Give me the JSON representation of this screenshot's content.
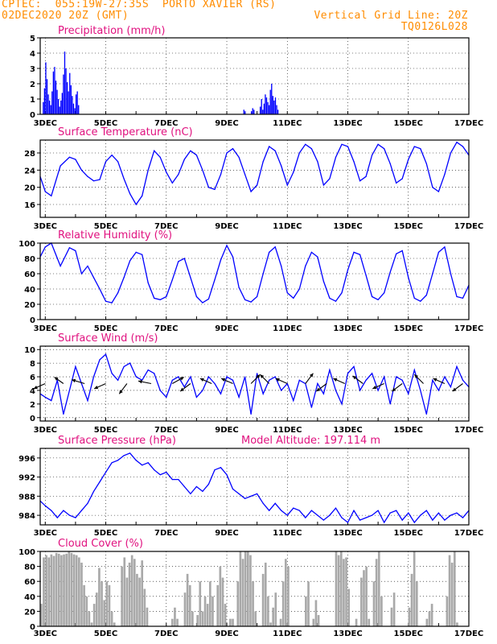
{
  "header": {
    "line1_left": "CPTEC:",
    "line1_coords": "055:19W-27:35S",
    "line1_place": "PORTO XAVIER (RS)",
    "line2_left": "02DEC2020 20Z (GMT)",
    "line1_right": "Vertical Grid Line: 20Z",
    "line2_right": "TQ0126L028"
  },
  "colors": {
    "header": "#ff8c00",
    "titles": "#e0117f",
    "series": "#0000ff",
    "cloud": "#a9a9a9",
    "arrows": "#000000"
  },
  "x_labels": [
    "3DEC",
    "5DEC",
    "7DEC",
    "9DEC",
    "11DEC",
    "13DEC",
    "15DEC",
    "17DEC"
  ],
  "chart_data": [
    {
      "type": "bar",
      "title": "Precipitation (mm/h)",
      "ylim": [
        0,
        5
      ],
      "yticks": [
        0,
        1,
        2,
        3,
        4,
        5
      ],
      "grid": true,
      "x_start_day": 2.833,
      "step_days": 0.0417,
      "values": [
        0,
        0,
        0.8,
        1.7,
        3.4,
        2.3,
        1.3,
        0.9,
        0.6,
        1.5,
        2.8,
        3.1,
        2.2,
        1.6,
        1.0,
        0.5,
        0.9,
        1.4,
        2.6,
        4.1,
        3.0,
        2.1,
        1.5,
        2.7,
        1.9,
        1.2,
        0.7,
        0.4,
        1.3,
        1.5,
        0.6,
        0,
        0,
        0,
        0,
        0,
        0,
        0,
        0,
        0,
        0,
        0,
        0,
        0,
        0,
        0,
        0,
        0,
        0,
        0,
        0,
        0,
        0,
        0,
        0,
        0,
        0,
        0,
        0,
        0,
        0,
        0,
        0,
        0,
        0,
        0,
        0,
        0,
        0,
        0,
        0,
        0,
        0,
        0,
        0,
        0,
        0,
        0,
        0,
        0,
        0,
        0,
        0,
        0,
        0,
        0,
        0,
        0,
        0,
        0,
        0,
        0,
        0,
        0,
        0,
        0,
        0,
        0,
        0,
        0,
        0,
        0,
        0,
        0,
        0,
        0,
        0,
        0,
        0,
        0,
        0,
        0,
        0,
        0,
        0,
        0,
        0,
        0,
        0,
        0,
        0,
        0,
        0,
        0,
        0,
        0,
        0,
        0,
        0,
        0,
        0,
        0,
        0,
        0,
        0,
        0,
        0,
        0,
        0,
        0,
        0,
        0,
        0,
        0,
        0,
        0,
        0,
        0,
        0,
        0,
        0,
        0,
        0,
        0,
        0,
        0,
        0,
        0,
        0,
        0,
        0,
        0.3,
        0.2,
        0,
        0,
        0,
        0,
        0.2,
        0.4,
        0.3,
        0,
        0,
        0,
        0,
        0.5,
        1.0,
        0.3,
        0.7,
        1.3,
        1.1,
        0.8,
        0.6,
        1.6,
        2.0,
        1.2,
        0.9,
        1.1,
        0.6,
        0.3
      ]
    },
    {
      "type": "line",
      "title": "Surface Temperature (nC)",
      "ylim": [
        13,
        31
      ],
      "yticks": [
        16,
        20,
        24,
        28
      ],
      "grid": true,
      "x": [
        2.833,
        3.0,
        3.2,
        3.5,
        3.8,
        4.0,
        4.2,
        4.4,
        4.6,
        4.8,
        5.0,
        5.2,
        5.4,
        5.6,
        5.8,
        6.0,
        6.2,
        6.4,
        6.6,
        6.8,
        7.0,
        7.2,
        7.4,
        7.6,
        7.8,
        8.0,
        8.2,
        8.4,
        8.6,
        8.8,
        9.0,
        9.2,
        9.4,
        9.6,
        9.8,
        10.0,
        10.2,
        10.4,
        10.6,
        10.8,
        11.0,
        11.2,
        11.4,
        11.6,
        11.8,
        12.0,
        12.2,
        12.4,
        12.6,
        12.8,
        13.0,
        13.2,
        13.4,
        13.6,
        13.8,
        14.0,
        14.2,
        14.4,
        14.6,
        14.8,
        15.0,
        15.2,
        15.4,
        15.6,
        15.8,
        16.0,
        16.2,
        16.4,
        16.6,
        16.8,
        17.0
      ],
      "values": [
        22.5,
        19,
        18,
        25,
        27,
        26.5,
        24,
        22.5,
        21.5,
        21.8,
        26,
        27.5,
        26,
        22,
        18.5,
        16,
        18,
        24,
        28.5,
        27,
        23.5,
        21,
        23,
        26.5,
        28.5,
        27.5,
        24,
        20,
        19.5,
        23,
        28,
        29,
        27,
        23,
        19,
        20.5,
        26,
        29.5,
        28.5,
        25,
        20.5,
        23.5,
        28,
        30,
        29,
        26,
        20.5,
        22,
        27,
        30,
        29.5,
        26,
        21.5,
        22.5,
        27.5,
        30,
        29,
        25.5,
        21,
        22,
        26.5,
        29.5,
        29,
        25.5,
        20,
        19,
        23,
        28,
        30.5,
        29.5,
        27.5
      ]
    },
    {
      "type": "line",
      "title": "Relative Humidity (%)",
      "ylim": [
        0,
        100
      ],
      "yticks": [
        0,
        20,
        40,
        60,
        80,
        100
      ],
      "grid": true,
      "x": [
        2.833,
        3.0,
        3.2,
        3.5,
        3.8,
        4.0,
        4.2,
        4.4,
        4.6,
        4.8,
        5.0,
        5.2,
        5.4,
        5.6,
        5.8,
        6.0,
        6.2,
        6.4,
        6.6,
        6.8,
        7.0,
        7.2,
        7.4,
        7.6,
        7.8,
        8.0,
        8.2,
        8.4,
        8.6,
        8.8,
        9.0,
        9.2,
        9.4,
        9.6,
        9.8,
        10.0,
        10.2,
        10.4,
        10.6,
        10.8,
        11.0,
        11.2,
        11.4,
        11.6,
        11.8,
        12.0,
        12.2,
        12.4,
        12.6,
        12.8,
        13.0,
        13.2,
        13.4,
        13.6,
        13.8,
        14.0,
        14.2,
        14.4,
        14.6,
        14.8,
        15.0,
        15.2,
        15.4,
        15.6,
        15.8,
        16.0,
        16.2,
        16.4,
        16.6,
        16.8,
        17.0
      ],
      "values": [
        82,
        95,
        100,
        70,
        94,
        90,
        60,
        70,
        55,
        40,
        24,
        22,
        35,
        55,
        77,
        88,
        85,
        48,
        28,
        26,
        30,
        52,
        76,
        80,
        55,
        30,
        22,
        27,
        52,
        78,
        97,
        82,
        42,
        26,
        23,
        30,
        60,
        88,
        95,
        70,
        35,
        28,
        40,
        70,
        88,
        82,
        50,
        28,
        24,
        35,
        65,
        88,
        85,
        58,
        30,
        26,
        35,
        62,
        86,
        90,
        55,
        28,
        24,
        32,
        60,
        88,
        95,
        60,
        30,
        28,
        45
      ]
    },
    {
      "type": "line",
      "title": "Surface Wind (m/s)",
      "ylim": [
        -0.5,
        10.5
      ],
      "yticks": [
        0,
        2,
        4,
        6,
        8,
        10
      ],
      "grid": true,
      "x": [
        2.833,
        3.0,
        3.2,
        3.4,
        3.6,
        3.8,
        4.0,
        4.2,
        4.4,
        4.6,
        4.8,
        5.0,
        5.2,
        5.4,
        5.6,
        5.8,
        6.0,
        6.2,
        6.4,
        6.6,
        6.8,
        7.0,
        7.2,
        7.4,
        7.6,
        7.8,
        8.0,
        8.2,
        8.4,
        8.6,
        8.8,
        9.0,
        9.2,
        9.4,
        9.6,
        9.8,
        10.0,
        10.2,
        10.4,
        10.6,
        10.8,
        11.0,
        11.2,
        11.4,
        11.6,
        11.8,
        12.0,
        12.2,
        12.4,
        12.6,
        12.8,
        13.0,
        13.2,
        13.4,
        13.6,
        13.8,
        14.0,
        14.2,
        14.4,
        14.6,
        14.8,
        15.0,
        15.2,
        15.4,
        15.6,
        15.8,
        16.0,
        16.2,
        16.4,
        16.6,
        16.8,
        17.0
      ],
      "values": [
        3.5,
        3.0,
        2.5,
        5.5,
        0.5,
        4.0,
        7.5,
        5.0,
        2.5,
        6.0,
        8.5,
        9.3,
        6.5,
        5.5,
        7.5,
        8.0,
        6.0,
        5.5,
        7.0,
        6.5,
        4.0,
        3.0,
        5.5,
        6.0,
        4.5,
        6.0,
        3.0,
        4.0,
        6.0,
        5.0,
        3.5,
        6.0,
        5.5,
        3.0,
        6.0,
        0.5,
        6.5,
        3.5,
        5.5,
        6.0,
        4.0,
        5.0,
        2.5,
        5.5,
        5.0,
        1.5,
        5.0,
        3.5,
        7.0,
        4.0,
        2.0,
        6.5,
        7.5,
        4.0,
        5.5,
        6.5,
        4.0,
        6.0,
        2.0,
        6.0,
        5.5,
        3.5,
        7.0,
        4.0,
        0.5,
        5.5,
        4.0,
        6.0,
        4.5,
        7.5,
        5.5,
        4.5
      ],
      "vector_x": [
        3.0,
        3.6,
        4.3,
        5.0,
        5.7,
        6.5,
        7.2,
        7.8,
        8.5,
        9.2,
        9.8,
        10.4,
        11.0,
        11.6,
        12.3,
        12.9,
        13.5,
        14.2,
        14.8,
        15.5,
        16.2,
        16.8
      ],
      "vector_u": [
        -0.9,
        -0.7,
        -1.0,
        -0.9,
        -0.6,
        -1.0,
        0.9,
        -0.8,
        -0.9,
        -0.9,
        0.7,
        -0.7,
        -0.9,
        0.6,
        -0.8,
        -0.9,
        -0.8,
        -0.9,
        -0.8,
        -0.7,
        -0.9,
        -0.8
      ],
      "vector_v": [
        -0.4,
        0.5,
        0.3,
        -0.4,
        -0.8,
        0.2,
        0.5,
        -0.6,
        0.4,
        0.4,
        0.7,
        0.7,
        0.4,
        0.8,
        -0.6,
        0.4,
        0.6,
        -0.4,
        -0.6,
        0.7,
        0.4,
        -0.6
      ]
    },
    {
      "type": "line",
      "title": "Surface Pressure (hPa)",
      "ylim": [
        982,
        998
      ],
      "yticks": [
        984,
        988,
        992,
        996
      ],
      "grid": true,
      "x": [
        2.833,
        3.0,
        3.2,
        3.4,
        3.6,
        3.8,
        4.0,
        4.2,
        4.4,
        4.6,
        4.8,
        5.0,
        5.2,
        5.4,
        5.6,
        5.8,
        6.0,
        6.2,
        6.4,
        6.6,
        6.8,
        7.0,
        7.2,
        7.4,
        7.6,
        7.8,
        8.0,
        8.2,
        8.4,
        8.6,
        8.8,
        9.0,
        9.2,
        9.4,
        9.6,
        9.8,
        10.0,
        10.2,
        10.4,
        10.6,
        10.8,
        11.0,
        11.2,
        11.4,
        11.6,
        11.8,
        12.0,
        12.2,
        12.4,
        12.6,
        12.8,
        13.0,
        13.2,
        13.4,
        13.6,
        13.8,
        14.0,
        14.2,
        14.4,
        14.6,
        14.8,
        15.0,
        15.2,
        15.4,
        15.6,
        15.8,
        16.0,
        16.2,
        16.4,
        16.6,
        16.8,
        17.0
      ],
      "values": [
        987,
        986,
        985,
        983.5,
        985,
        984,
        983.5,
        985,
        986.5,
        989,
        991,
        993,
        995,
        995.5,
        996.5,
        997,
        995.5,
        994.5,
        995,
        993.5,
        992.5,
        993,
        991.5,
        991.5,
        990,
        988.5,
        990,
        989,
        990.5,
        993.5,
        994,
        992.5,
        989.5,
        988.5,
        987.5,
        988,
        988.5,
        986.5,
        985,
        986.5,
        985,
        984,
        985.5,
        985,
        983.5,
        985,
        984,
        983,
        984,
        985.5,
        983.5,
        982.5,
        985,
        983,
        983.5,
        984,
        985,
        982.5,
        984.5,
        985,
        983,
        984.5,
        982.5,
        984,
        985,
        983,
        984.5,
        983,
        984,
        984.5,
        983.5,
        985
      ]
    },
    {
      "type": "bar",
      "title": "Cloud Cover (%)",
      "ylim": [
        0,
        100
      ],
      "yticks": [
        0,
        20,
        40,
        60,
        80,
        100
      ],
      "grid": true,
      "x_start_day": 2.833,
      "step_days": 0.0833,
      "values": [
        30,
        92,
        95,
        92,
        96,
        94,
        98,
        97,
        95,
        96,
        97,
        100,
        98,
        96,
        95,
        92,
        85,
        55,
        40,
        20,
        5,
        30,
        45,
        78,
        60,
        35,
        60,
        55,
        20,
        5,
        0,
        0,
        80,
        92,
        65,
        85,
        95,
        90,
        70,
        65,
        88,
        50,
        25,
        0,
        0,
        0,
        0,
        0,
        0,
        0,
        0,
        0,
        10,
        25,
        10,
        0,
        0,
        45,
        70,
        55,
        20,
        0,
        15,
        60,
        20,
        40,
        30,
        60,
        40,
        0,
        55,
        80,
        65,
        30,
        0,
        10,
        10,
        0,
        60,
        100,
        90,
        100,
        100,
        95,
        60,
        20,
        0,
        0,
        70,
        85,
        40,
        5,
        25,
        45,
        0,
        10,
        60,
        90,
        80,
        0,
        0,
        0,
        0,
        0,
        0,
        40,
        60,
        0,
        10,
        35,
        15,
        0,
        0,
        0,
        0,
        0,
        0,
        100,
        95,
        100,
        90,
        92,
        50,
        0,
        0,
        10,
        0,
        65,
        75,
        80,
        10,
        0,
        60,
        90,
        100,
        40,
        0,
        0,
        0,
        25,
        45,
        0,
        0,
        0,
        0,
        0,
        25,
        70,
        100,
        60,
        0,
        0,
        0,
        10,
        20,
        30,
        0,
        0,
        0,
        0,
        0,
        40,
        95,
        85,
        100,
        5
      ]
    },
    {
      "type": "annotation",
      "label_text": "Model Altitude: 197.114 m"
    }
  ]
}
